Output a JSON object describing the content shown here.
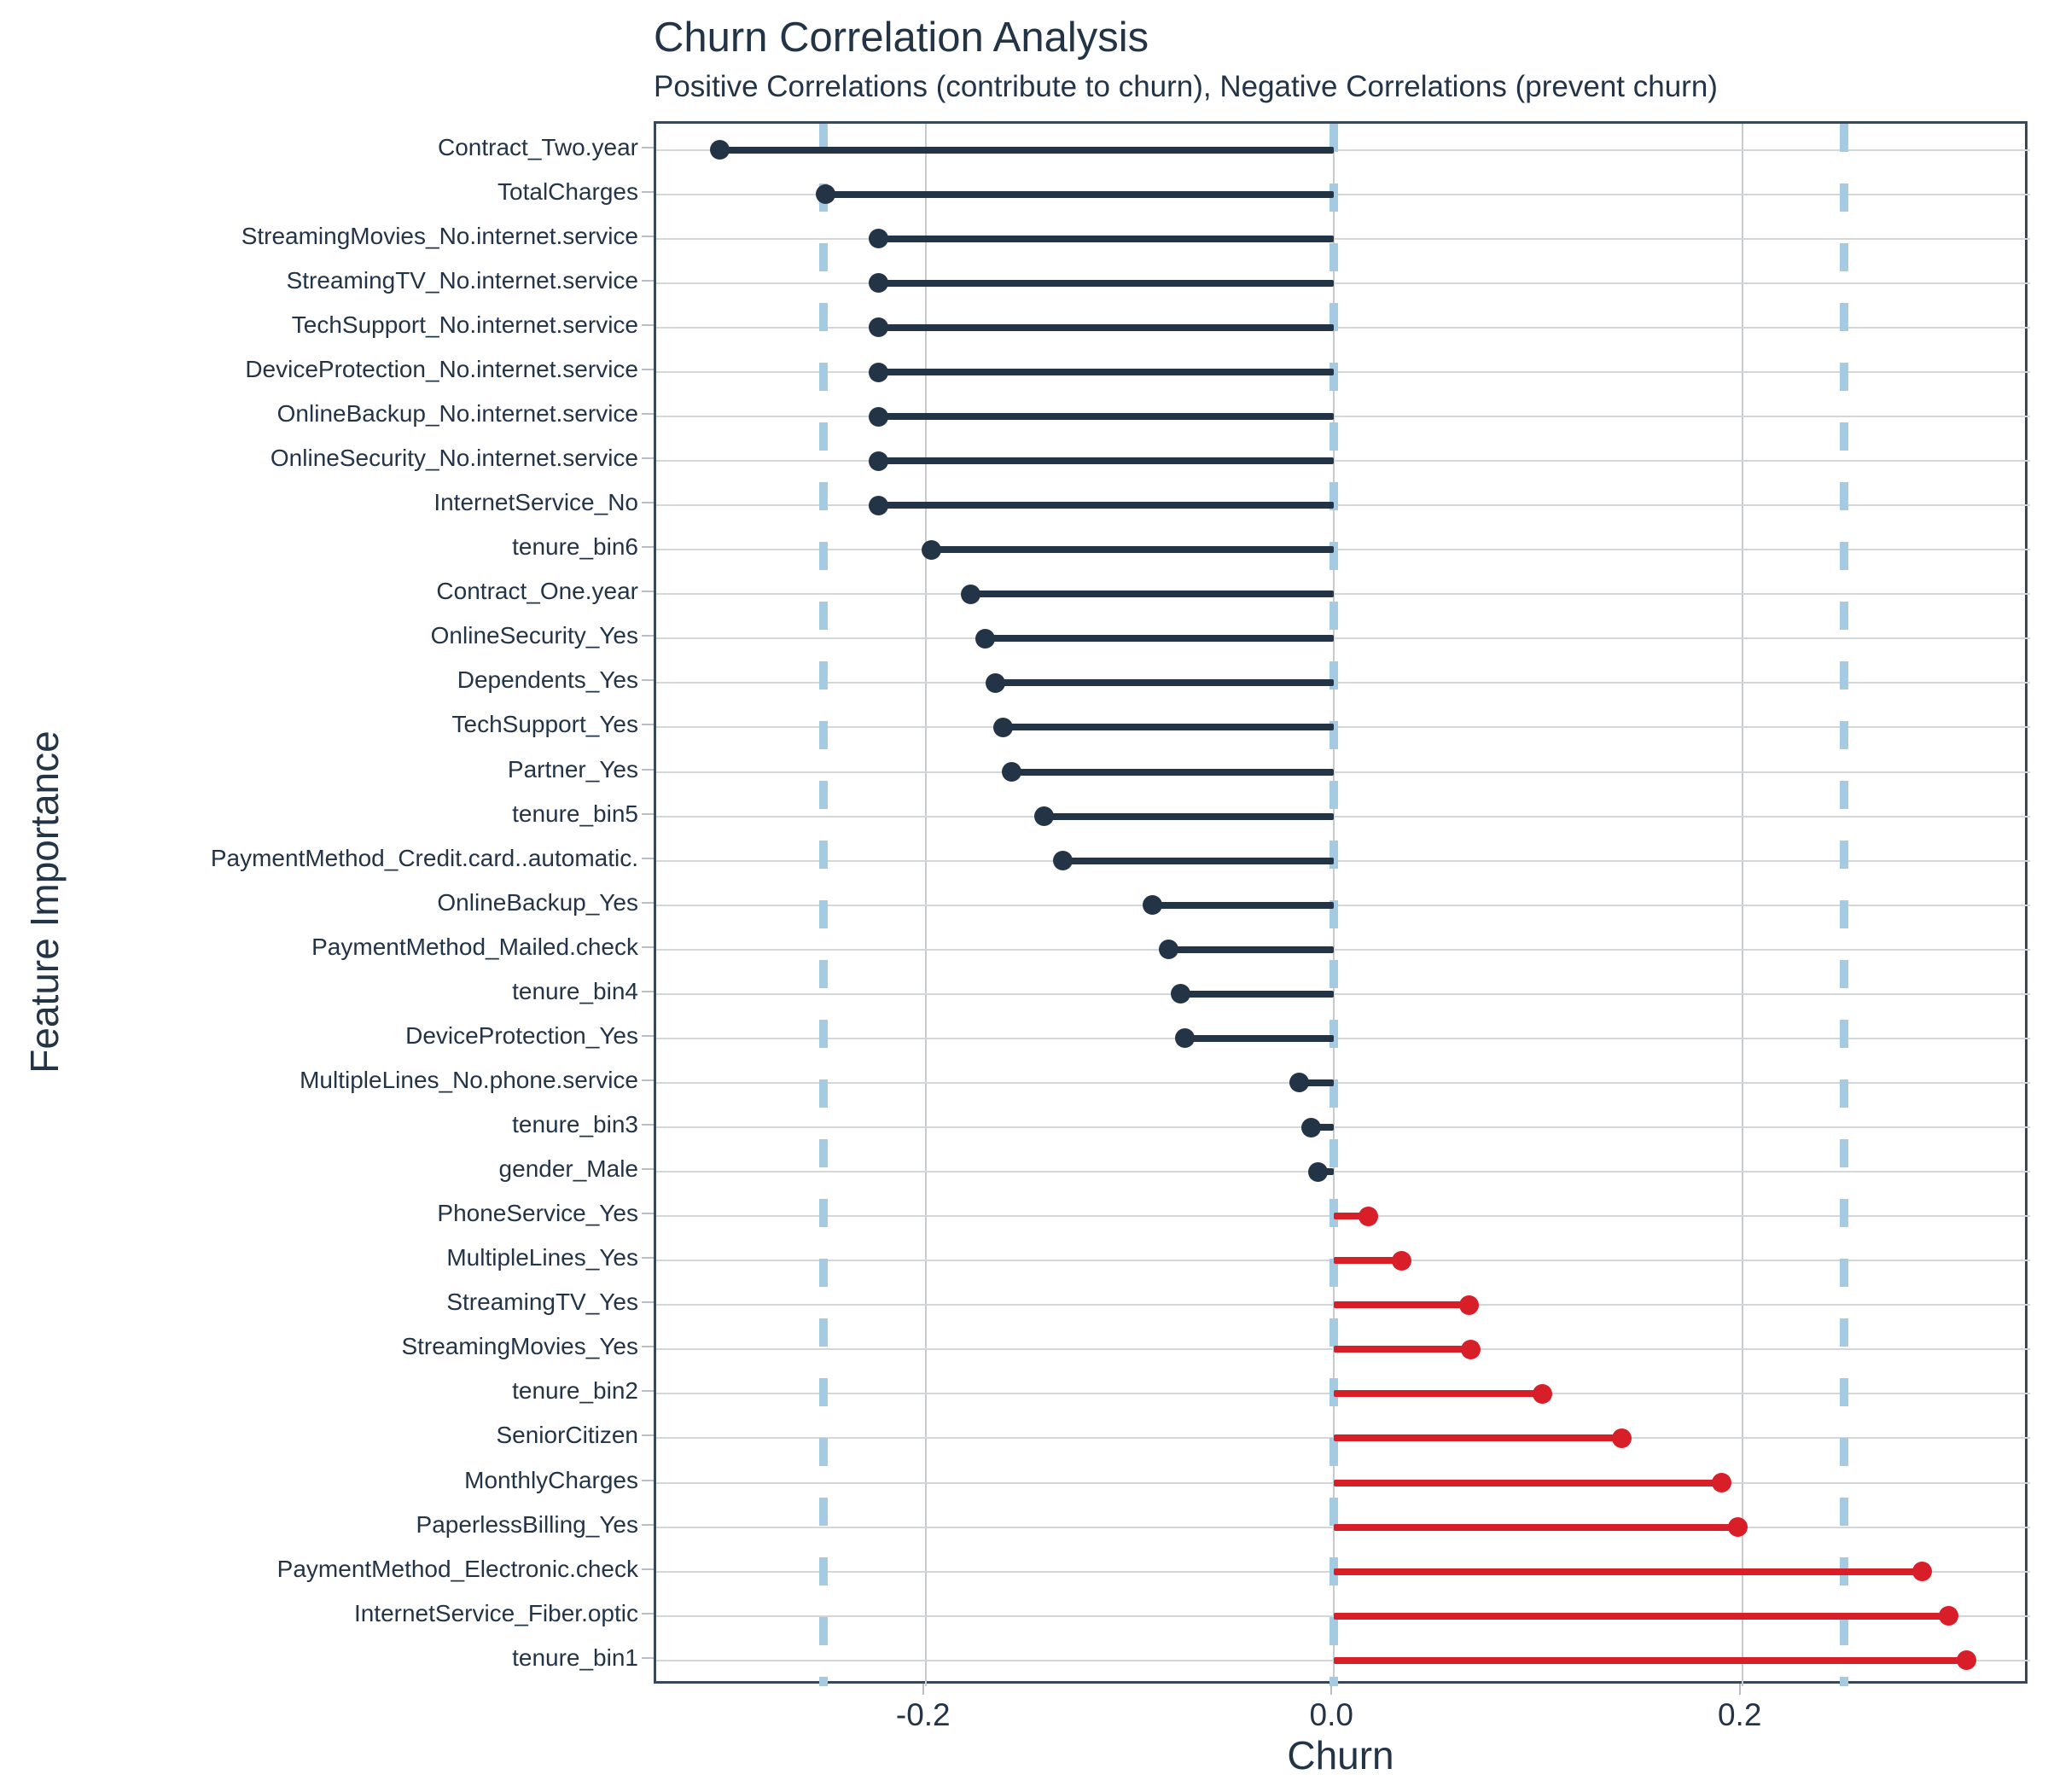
{
  "chart_data": {
    "type": "bar",
    "variant": "horizontal-lollipop",
    "title": "Churn Correlation Analysis",
    "subtitle": "Positive Correlations (contribute to churn), Negative Correlations (prevent churn)",
    "xlabel": "Churn",
    "ylabel": "Feature Importance",
    "xlim": [
      -0.332,
      0.341
    ],
    "x_ticks": [
      -0.2,
      0.0,
      0.2
    ],
    "x_tick_labels": [
      "-0.2",
      "0.0",
      "0.2"
    ],
    "reference_lines_x": [
      -0.25,
      0.0,
      0.25
    ],
    "grid": true,
    "legend": "none",
    "categories": [
      "Contract_Two.year",
      "TotalCharges",
      "StreamingMovies_No.internet.service",
      "StreamingTV_No.internet.service",
      "TechSupport_No.internet.service",
      "DeviceProtection_No.internet.service",
      "OnlineBackup_No.internet.service",
      "OnlineSecurity_No.internet.service",
      "InternetService_No",
      "tenure_bin6",
      "Contract_One.year",
      "OnlineSecurity_Yes",
      "Dependents_Yes",
      "TechSupport_Yes",
      "Partner_Yes",
      "tenure_bin5",
      "PaymentMethod_Credit.card..automatic.",
      "OnlineBackup_Yes",
      "PaymentMethod_Mailed.check",
      "tenure_bin4",
      "DeviceProtection_Yes",
      "MultipleLines_No.phone.service",
      "tenure_bin3",
      "gender_Male",
      "PhoneService_Yes",
      "MultipleLines_Yes",
      "StreamingTV_Yes",
      "StreamingMovies_Yes",
      "tenure_bin2",
      "SeniorCitizen",
      "MonthlyCharges",
      "PaperlessBilling_Yes",
      "PaymentMethod_Electronic.check",
      "InternetService_Fiber.optic",
      "tenure_bin1"
    ],
    "values": [
      -0.301,
      -0.249,
      -0.223,
      -0.223,
      -0.223,
      -0.223,
      -0.223,
      -0.223,
      -0.223,
      -0.197,
      -0.178,
      -0.171,
      -0.166,
      -0.162,
      -0.158,
      -0.142,
      -0.133,
      -0.089,
      -0.081,
      -0.075,
      -0.073,
      -0.017,
      -0.011,
      -0.008,
      0.017,
      0.033,
      0.066,
      0.067,
      0.102,
      0.141,
      0.19,
      0.198,
      0.288,
      0.301,
      0.31
    ],
    "colors": {
      "positive": "#d81e28",
      "negative": "#243447",
      "reference_line": "#a5cbe2",
      "gridline": "#c7cbd0",
      "panel_border": "#3a4757",
      "text": "#243447"
    }
  }
}
